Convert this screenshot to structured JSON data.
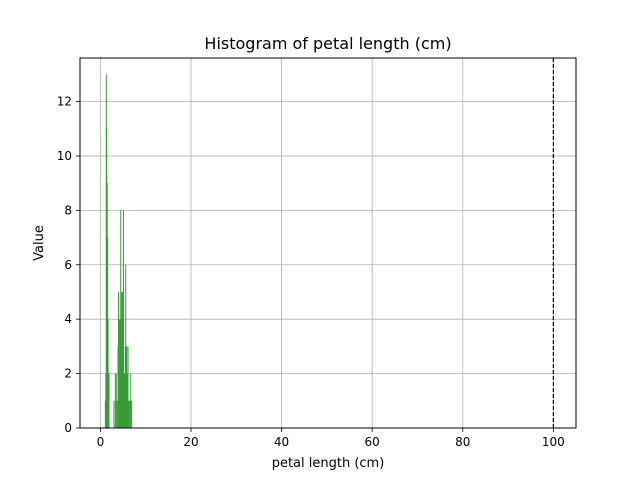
{
  "chart_data": {
    "type": "bar",
    "title": "Histogram of petal length (cm)",
    "xlabel": "petal length (cm)",
    "ylabel": "Value",
    "xlim": [
      -4.5,
      105
    ],
    "ylim": [
      0,
      13.6
    ],
    "x_ticks": [
      0,
      20,
      40,
      60,
      80,
      100
    ],
    "y_ticks": [
      0,
      2,
      4,
      6,
      8,
      10,
      12
    ],
    "grid": true,
    "bar_color": "#3a9a3a",
    "bar_width": 0.22,
    "reference_line": {
      "x": 100,
      "style": "dashed",
      "color": "#000000"
    },
    "bins": [
      {
        "x": 1.1,
        "value": 1
      },
      {
        "x": 1.2,
        "value": 2
      },
      {
        "x": 1.3,
        "value": 13
      },
      {
        "x": 1.4,
        "value": 11
      },
      {
        "x": 1.5,
        "value": 9
      },
      {
        "x": 1.6,
        "value": 7
      },
      {
        "x": 1.7,
        "value": 4
      },
      {
        "x": 1.9,
        "value": 2
      },
      {
        "x": 3.0,
        "value": 1
      },
      {
        "x": 3.3,
        "value": 2
      },
      {
        "x": 3.5,
        "value": 2
      },
      {
        "x": 3.7,
        "value": 1
      },
      {
        "x": 3.9,
        "value": 3
      },
      {
        "x": 4.0,
        "value": 5
      },
      {
        "x": 4.1,
        "value": 3
      },
      {
        "x": 4.2,
        "value": 4
      },
      {
        "x": 4.3,
        "value": 2
      },
      {
        "x": 4.4,
        "value": 4
      },
      {
        "x": 4.5,
        "value": 8
      },
      {
        "x": 4.6,
        "value": 3
      },
      {
        "x": 4.7,
        "value": 5
      },
      {
        "x": 4.8,
        "value": 4
      },
      {
        "x": 4.9,
        "value": 5
      },
      {
        "x": 5.0,
        "value": 4
      },
      {
        "x": 5.1,
        "value": 8
      },
      {
        "x": 5.2,
        "value": 2
      },
      {
        "x": 5.3,
        "value": 2
      },
      {
        "x": 5.4,
        "value": 2
      },
      {
        "x": 5.5,
        "value": 3
      },
      {
        "x": 5.6,
        "value": 6
      },
      {
        "x": 5.7,
        "value": 3
      },
      {
        "x": 5.8,
        "value": 3
      },
      {
        "x": 5.9,
        "value": 2
      },
      {
        "x": 6.0,
        "value": 2
      },
      {
        "x": 6.1,
        "value": 3
      },
      {
        "x": 6.3,
        "value": 1
      },
      {
        "x": 6.4,
        "value": 1
      },
      {
        "x": 6.6,
        "value": 1
      },
      {
        "x": 6.7,
        "value": 2
      },
      {
        "x": 6.9,
        "value": 1
      }
    ]
  }
}
